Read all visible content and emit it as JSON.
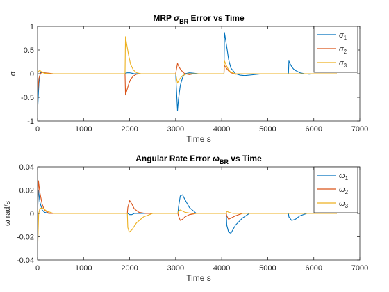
{
  "chart_data": [
    {
      "type": "line",
      "title": "MRP σBR Error vs Time",
      "title_parts": {
        "pre": "MRP ",
        "sym": "σ",
        "sub": "BR",
        "post": " Error vs Time"
      },
      "xlabel": "Time s",
      "ylabel": "σ",
      "xlim": [
        0,
        7000
      ],
      "ylim": [
        -1,
        1
      ],
      "xticks": [
        0,
        1000,
        2000,
        3000,
        4000,
        5000,
        6000,
        7000
      ],
      "yticks": [
        -1,
        -0.5,
        0,
        0.5,
        1
      ],
      "ytick_labels": [
        "-1",
        "-0.5",
        "0",
        "0.5",
        "1"
      ],
      "grid": false,
      "legend_position": "top-right",
      "series": [
        {
          "name": "σ1",
          "sym": "σ",
          "sub": "1",
          "color": "#0072BD",
          "x": [
            0,
            10,
            30,
            60,
            100,
            150,
            200,
            300,
            400,
            1900,
            1910,
            1950,
            2000,
            2050,
            2100,
            2200,
            2300,
            3000,
            3040,
            3060,
            3100,
            3150,
            3200,
            3300,
            3400,
            3500,
            4050,
            4060,
            4080,
            4120,
            4150,
            4200,
            4300,
            4400,
            4500,
            4700,
            4900,
            5450,
            5460,
            5480,
            5520,
            5560,
            5600,
            5700,
            5800,
            5900,
            6000,
            6500
          ],
          "y": [
            -0.8,
            -0.6,
            -0.2,
            0.02,
            0.04,
            0.02,
            0.01,
            0.0,
            0.0,
            0.0,
            0.01,
            0.02,
            0.02,
            0.01,
            0.0,
            0.0,
            0.0,
            0.0,
            -0.78,
            -0.55,
            -0.25,
            -0.08,
            0.0,
            0.02,
            0.01,
            0.0,
            0.0,
            0.87,
            0.75,
            0.5,
            0.3,
            0.12,
            0.0,
            -0.03,
            -0.04,
            -0.02,
            0.0,
            0.0,
            0.27,
            0.22,
            0.15,
            0.1,
            0.07,
            0.02,
            0.0,
            -0.01,
            0.0,
            0.0
          ]
        },
        {
          "name": "σ2",
          "sym": "σ",
          "sub": "2",
          "color": "#D95319",
          "x": [
            0,
            10,
            30,
            60,
            100,
            150,
            250,
            350,
            450,
            1900,
            1910,
            1940,
            1980,
            2020,
            2080,
            2150,
            2250,
            2350,
            3000,
            3040,
            3060,
            3100,
            3150,
            3200,
            3300,
            3400,
            4050,
            4060,
            4090,
            4150,
            4200,
            4300,
            4400,
            4500,
            6500
          ],
          "y": [
            -0.5,
            -0.35,
            -0.1,
            0.0,
            0.03,
            0.02,
            0.01,
            0.0,
            0.0,
            0.0,
            -0.45,
            -0.35,
            -0.22,
            -0.12,
            -0.05,
            -0.01,
            0.0,
            0.0,
            0.0,
            0.22,
            0.17,
            0.1,
            0.04,
            0.0,
            -0.02,
            0.0,
            0.0,
            0.18,
            0.13,
            0.06,
            0.02,
            -0.01,
            0.0,
            0.0,
            0.0
          ]
        },
        {
          "name": "σ3",
          "sym": "σ",
          "sub": "3",
          "color": "#EDB120",
          "x": [
            0,
            20,
            50,
            100,
            150,
            250,
            400,
            1900,
            1910,
            1940,
            1980,
            2020,
            2080,
            2150,
            2250,
            2350,
            3000,
            3040,
            3080,
            3150,
            3250,
            3400,
            4050,
            4060,
            4100,
            4150,
            4200,
            4300,
            4400,
            6500
          ],
          "y": [
            0.0,
            0.05,
            0.07,
            0.03,
            0.01,
            0.0,
            0.0,
            0.0,
            0.78,
            0.6,
            0.38,
            0.2,
            0.08,
            0.02,
            0.0,
            0.0,
            0.0,
            -0.2,
            -0.12,
            -0.04,
            0.0,
            0.0,
            0.0,
            0.27,
            0.18,
            0.08,
            0.03,
            0.0,
            0.0,
            0.0
          ]
        }
      ]
    },
    {
      "type": "line",
      "title": "Angular Rate Error ωBR vs Time",
      "title_parts": {
        "pre": "Angular Rate Error ",
        "sym": "ω",
        "sub": "BR",
        "post": " vs Time"
      },
      "xlabel": "Time s",
      "ylabel": "ω rad/s",
      "xlim": [
        0,
        7000
      ],
      "ylim": [
        -0.04,
        0.04
      ],
      "xticks": [
        0,
        1000,
        2000,
        3000,
        4000,
        5000,
        6000,
        7000
      ],
      "yticks": [
        -0.04,
        -0.02,
        0,
        0.02,
        0.04
      ],
      "ytick_labels": [
        "-0.04",
        "-0.02",
        "0",
        "0.02",
        "0.04"
      ],
      "grid": false,
      "legend_position": "top-right",
      "series": [
        {
          "name": "ω1",
          "sym": "ω",
          "sub": "1",
          "color": "#0072BD",
          "x": [
            0,
            20,
            50,
            100,
            150,
            250,
            400,
            600,
            1950,
            1960,
            2000,
            2050,
            2100,
            2200,
            2350,
            3050,
            3060,
            3100,
            3150,
            3200,
            3300,
            3450,
            3600,
            4100,
            4110,
            4150,
            4200,
            4300,
            4450,
            4600,
            5450,
            5460,
            5520,
            5600,
            5700,
            5850,
            6500
          ],
          "y": [
            0.0,
            0.02,
            0.01,
            0.003,
            0.001,
            0.0,
            0.0,
            0.0,
            0.0,
            0.0,
            -0.001,
            -0.001,
            0.0,
            0.0,
            0.0,
            0.0,
            0.005,
            0.015,
            0.016,
            0.012,
            0.005,
            0.0,
            0.0,
            0.0,
            -0.01,
            -0.016,
            -0.017,
            -0.01,
            -0.004,
            0.0,
            0.0,
            -0.003,
            -0.006,
            -0.005,
            -0.002,
            0.0,
            0.0
          ]
        },
        {
          "name": "ω2",
          "sym": "ω",
          "sub": "2",
          "color": "#D95319",
          "x": [
            0,
            20,
            50,
            100,
            150,
            250,
            400,
            1950,
            1960,
            2000,
            2050,
            2100,
            2200,
            2350,
            3050,
            3060,
            3100,
            3150,
            3200,
            3300,
            3450,
            4100,
            4110,
            4150,
            4200,
            4300,
            4450,
            6500
          ],
          "y": [
            0.0,
            0.028,
            0.018,
            0.008,
            0.003,
            0.0,
            0.0,
            0.0,
            0.005,
            0.011,
            0.008,
            0.004,
            0.001,
            0.0,
            0.0,
            -0.002,
            -0.006,
            -0.005,
            -0.003,
            -0.001,
            0.0,
            0.0,
            -0.002,
            -0.005,
            -0.004,
            -0.002,
            0.0,
            0.0
          ]
        },
        {
          "name": "ω3",
          "sym": "ω",
          "sub": "3",
          "color": "#EDB120",
          "x": [
            0,
            10,
            25,
            50,
            100,
            200,
            350,
            500,
            1950,
            1960,
            1990,
            2050,
            2150,
            2300,
            2500,
            3050,
            3060,
            3100,
            3200,
            3350,
            4100,
            4110,
            4150,
            4250,
            4400,
            6500
          ],
          "y": [
            -0.035,
            -0.02,
            0.0,
            0.004,
            0.005,
            0.002,
            0.0,
            0.0,
            0.0,
            -0.012,
            -0.016,
            -0.014,
            -0.008,
            -0.003,
            0.0,
            0.0,
            0.002,
            0.003,
            0.001,
            0.0,
            0.0,
            0.002,
            0.001,
            0.0,
            0.0,
            0.0
          ]
        }
      ]
    }
  ]
}
